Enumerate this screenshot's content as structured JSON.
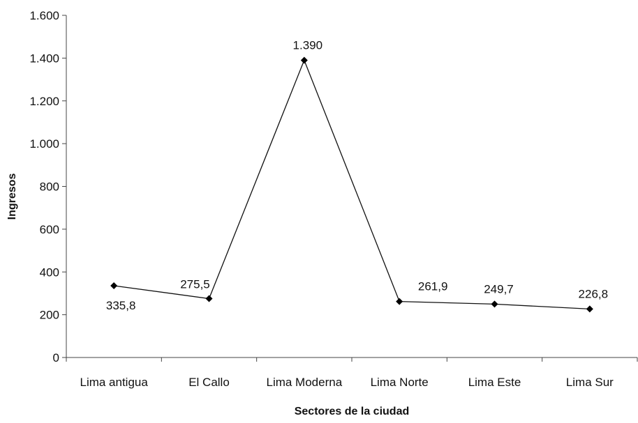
{
  "chart_data": {
    "type": "line",
    "categories": [
      "Lima antigua",
      "El Callo",
      "Lima Moderna",
      "Lima Norte",
      "Lima Este",
      "Lima Sur"
    ],
    "series": [
      {
        "values": [
          335.8,
          275.5,
          1390,
          261.9,
          249.7,
          226.8
        ],
        "labels": [
          "335,8",
          "275,5",
          "1.390",
          "261,9",
          "249,7",
          "226,8"
        ]
      }
    ],
    "xlabel": "Sectores de la ciudad",
    "ylabel": "Ingresos",
    "ylim": [
      0,
      1600
    ],
    "yticks": [
      0,
      200,
      400,
      600,
      800,
      1000,
      1200,
      1400,
      1600
    ],
    "ytick_labels": [
      "0",
      "200",
      "400",
      "600",
      "800",
      "1.000",
      "1.200",
      "1.400",
      "1.600"
    ],
    "grid": false,
    "marker": "diamond",
    "colors": {
      "line": "#111111",
      "marker": "#000000",
      "axis": "#444444"
    }
  }
}
